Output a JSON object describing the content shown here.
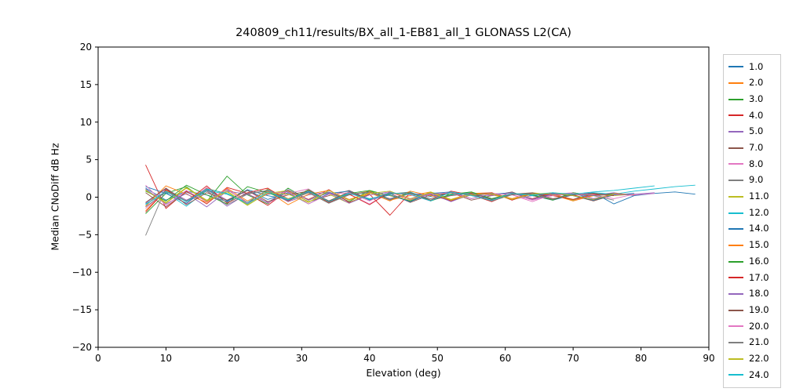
{
  "chart_data": {
    "type": "line",
    "title": "240809_ch11/results/BX_all_1-EB81_all_1 GLONASS L2(CA)",
    "xlabel": "Elevation (deg)",
    "ylabel": "Median CNoDiff dB Hz",
    "xlim": [
      0,
      90
    ],
    "ylim": [
      -20,
      20
    ],
    "xticks": [
      0,
      10,
      20,
      30,
      40,
      50,
      60,
      70,
      80,
      90
    ],
    "yticks": [
      -20,
      -15,
      -10,
      -5,
      0,
      5,
      10,
      15,
      20
    ],
    "grid": false,
    "legend_position": "right",
    "x": [
      7,
      10,
      13,
      16,
      19,
      22,
      25,
      28,
      31,
      34,
      37,
      40,
      43,
      46,
      49,
      52,
      55,
      58,
      61,
      64,
      67,
      70,
      73,
      76,
      79,
      82,
      85,
      88
    ],
    "series": [
      {
        "name": "1.0",
        "color": "#1f77b4",
        "values": [
          1.2,
          -0.4,
          0.8,
          0.3,
          -0.6,
          1.0,
          0.2,
          -0.3,
          0.7,
          -0.5,
          0.4,
          0.6,
          -0.2,
          0.5,
          0.1,
          0.6,
          0.4,
          -0.3,
          0.5,
          0.2,
          -0.4,
          0.3,
          0.6,
          -0.9,
          0.2,
          0.5,
          0.7,
          0.4
        ]
      },
      {
        "name": "2.0",
        "color": "#ff7f0e",
        "values": [
          -1.8,
          0.9,
          -0.5,
          1.2,
          0.4,
          -0.8,
          1.1,
          -0.2,
          0.6,
          -0.7,
          0.3,
          0.8,
          -0.4,
          0.2,
          0.7,
          -0.3,
          0.5,
          0.6,
          -0.2,
          0.4,
          0.3,
          -0.5,
          0.2,
          0.4
        ]
      },
      {
        "name": "3.0",
        "color": "#2ca02c",
        "values": [
          -2.2,
          0.5,
          1.4,
          -0.6,
          2.8,
          0.3,
          -0.9,
          1.2,
          -0.4,
          0.7,
          -0.6,
          0.9,
          0.2,
          -0.5,
          0.6,
          0.3,
          0.7,
          -0.2,
          0.4,
          0.5,
          -0.3,
          0.6,
          0.2,
          0.5,
          0.3
        ]
      },
      {
        "name": "4.0",
        "color": "#d62728",
        "values": [
          4.3,
          -1.5,
          0.8,
          -0.9,
          1.3,
          0.5,
          -1.1,
          0.9,
          -0.3,
          1.0,
          -0.7,
          0.4,
          -2.4,
          0.6,
          -0.4,
          0.8,
          0.3,
          -0.6,
          0.5,
          -0.2,
          0.6,
          0.3,
          -0.4,
          0.5
        ]
      },
      {
        "name": "5.0",
        "color": "#9467bd",
        "values": [
          -0.8,
          1.1,
          -0.4,
          0.9,
          -1.2,
          0.5,
          0.8,
          -0.6,
          0.3,
          0.7,
          -0.4,
          0.6,
          -0.2,
          0.5,
          0.3,
          -0.5,
          0.4,
          0.6,
          -0.3,
          0.2,
          0.5,
          -0.4,
          0.3,
          0.6,
          0.2
        ]
      },
      {
        "name": "7.0",
        "color": "#8c564b",
        "values": [
          0.6,
          -1.3,
          0.7,
          -0.5,
          1.0,
          -0.7,
          0.4,
          0.8,
          -0.6,
          0.2,
          0.9,
          -0.3,
          0.5,
          -0.7,
          0.3,
          0.6,
          -0.4,
          0.2,
          0.7,
          -0.3,
          0.4,
          0.2,
          -0.5,
          0.3
        ]
      },
      {
        "name": "8.0",
        "color": "#e377c2",
        "values": [
          -1.5,
          0.8,
          -0.9,
          1.3,
          -0.4,
          0.9,
          -0.8,
          0.5,
          1.1,
          -0.6,
          0.4,
          -0.9,
          0.6,
          0.3,
          -0.5,
          0.7,
          -0.2,
          0.5,
          0.3,
          -0.6,
          0.4,
          0.6,
          -0.2,
          0.4,
          0.3,
          0.5
        ]
      },
      {
        "name": "9.0",
        "color": "#7f7f7f",
        "values": [
          -5.1,
          1.2,
          -0.6,
          0.8,
          -1.0,
          0.4,
          0.9,
          -0.5,
          0.6,
          -0.8,
          0.3,
          0.7,
          -0.4,
          0.5,
          -0.2,
          0.6,
          0.3,
          -0.5,
          0.4,
          0.2,
          -0.3,
          0.5,
          0.2,
          -0.4
        ]
      },
      {
        "name": "11.0",
        "color": "#bcbd22",
        "values": [
          1.0,
          -0.7,
          1.3,
          -0.4,
          0.8,
          -1.0,
          0.5,
          0.9,
          -0.6,
          0.4,
          -0.8,
          0.6,
          0.2,
          -0.4,
          0.7,
          -0.3,
          0.5,
          0.4,
          -0.2,
          0.6,
          0.3,
          -0.4,
          0.5,
          0.2,
          0.4
        ]
      },
      {
        "name": "12.0",
        "color": "#17becf",
        "values": [
          -0.9,
          0.6,
          -1.2,
          0.9,
          0.4,
          -0.7,
          1.0,
          -0.3,
          0.8,
          -0.5,
          0.6,
          -0.2,
          0.4,
          0.7,
          -0.4,
          0.3,
          0.6,
          -0.3,
          0.5,
          0.2,
          0.4,
          -0.3,
          0.6,
          0.4,
          0.8,
          1.1,
          1.4,
          1.6
        ]
      },
      {
        "name": "14.0",
        "color": "#1f77b4",
        "values": [
          1.4,
          0.5,
          -0.8,
          1.1,
          -0.5,
          0.9,
          -0.3,
          0.6,
          -0.9,
          0.5,
          0.8,
          -0.4,
          0.3,
          -0.6,
          0.5,
          0.7,
          -0.2,
          0.4,
          0.6,
          -0.3,
          0.5,
          0.2,
          -0.4,
          0.3,
          0.5
        ]
      },
      {
        "name": "15.0",
        "color": "#ff7f0e",
        "values": [
          -1.2,
          1.5,
          0.4,
          -0.7,
          1.2,
          -0.5,
          0.8,
          -1.0,
          0.4,
          0.9,
          -0.3,
          0.6,
          -0.5,
          0.8,
          0.2,
          -0.4,
          0.6,
          0.3,
          -0.2,
          0.5,
          0.4,
          -0.3,
          0.2,
          0.5,
          0.3
        ]
      },
      {
        "name": "16.0",
        "color": "#2ca02c",
        "values": [
          0.8,
          -0.5,
          1.6,
          0.3,
          -0.9,
          1.4,
          0.6,
          -0.4,
          1.0,
          -0.6,
          0.5,
          0.9,
          -0.3,
          0.6,
          -0.5,
          0.4,
          0.7,
          -0.2,
          0.5,
          0.3,
          -0.4,
          0.6,
          0.2,
          0.4
        ]
      },
      {
        "name": "17.0",
        "color": "#d62728",
        "values": [
          -2.0,
          1.0,
          -0.6,
          1.5,
          -0.8,
          0.6,
          1.2,
          -0.5,
          0.9,
          -0.7,
          0.4,
          -1.0,
          0.7,
          -0.3,
          0.6,
          -0.5,
          0.3,
          0.6,
          -0.4,
          0.5,
          0.2,
          -0.3,
          0.4,
          0.2
        ]
      },
      {
        "name": "18.0",
        "color": "#9467bd",
        "values": [
          1.1,
          -0.9,
          0.5,
          -1.3,
          0.8,
          0.4,
          -0.7,
          1.0,
          -0.4,
          0.6,
          -0.8,
          0.3,
          0.7,
          -0.2,
          0.5,
          -0.6,
          0.4,
          0.2,
          0.6,
          -0.3,
          0.4,
          0.5,
          -0.2,
          0.3,
          0.4,
          0.6
        ]
      },
      {
        "name": "19.0",
        "color": "#8c564b",
        "values": [
          -0.7,
          1.2,
          -1.0,
          0.6,
          -0.4,
          0.9,
          -0.6,
          0.3,
          0.8,
          -0.5,
          0.7,
          -0.3,
          0.5,
          0.6,
          -0.4,
          0.2,
          0.5,
          -0.3,
          0.4,
          0.6,
          -0.2,
          0.3,
          0.5,
          0.2
        ]
      },
      {
        "name": "20.0",
        "color": "#e377c2",
        "values": [
          1.6,
          -1.1,
          0.9,
          -0.6,
          1.1,
          -0.8,
          0.5,
          0.7,
          -0.9,
          0.4,
          0.6,
          -0.5,
          0.8,
          -0.3,
          0.4,
          0.6,
          -0.2,
          0.5,
          0.3,
          -0.4,
          0.2,
          0.5,
          0.3,
          -0.2,
          0.4
        ]
      },
      {
        "name": "21.0",
        "color": "#7f7f7f",
        "values": [
          -1.3,
          0.7,
          -0.5,
          1.0,
          -0.7,
          0.5,
          0.9,
          -0.4,
          0.6,
          -0.8,
          0.4,
          0.7,
          -0.3,
          0.5,
          -0.2,
          0.6,
          0.4,
          -0.5,
          0.3,
          0.5,
          -0.3,
          0.4,
          0.2,
          0.5
        ]
      },
      {
        "name": "22.0",
        "color": "#bcbd22",
        "values": [
          0.9,
          -0.8,
          1.2,
          -0.5,
          0.7,
          -1.1,
          0.6,
          0.4,
          -0.7,
          0.9,
          -0.4,
          0.5,
          0.8,
          -0.2,
          0.6,
          -0.4,
          0.3,
          0.5,
          -0.3,
          0.4,
          0.6,
          0.2,
          -0.3,
          0.4
        ]
      },
      {
        "name": "24.0",
        "color": "#17becf",
        "values": [
          -1.0,
          0.8,
          -0.6,
          1.1,
          0.5,
          -0.9,
          0.7,
          -0.4,
          0.8,
          -0.6,
          0.5,
          -0.3,
          0.6,
          0.4,
          -0.5,
          0.7,
          0.2,
          -0.4,
          0.5,
          0.3,
          0.6,
          0.4,
          0.7,
          0.9,
          1.2,
          1.5
        ]
      }
    ]
  }
}
